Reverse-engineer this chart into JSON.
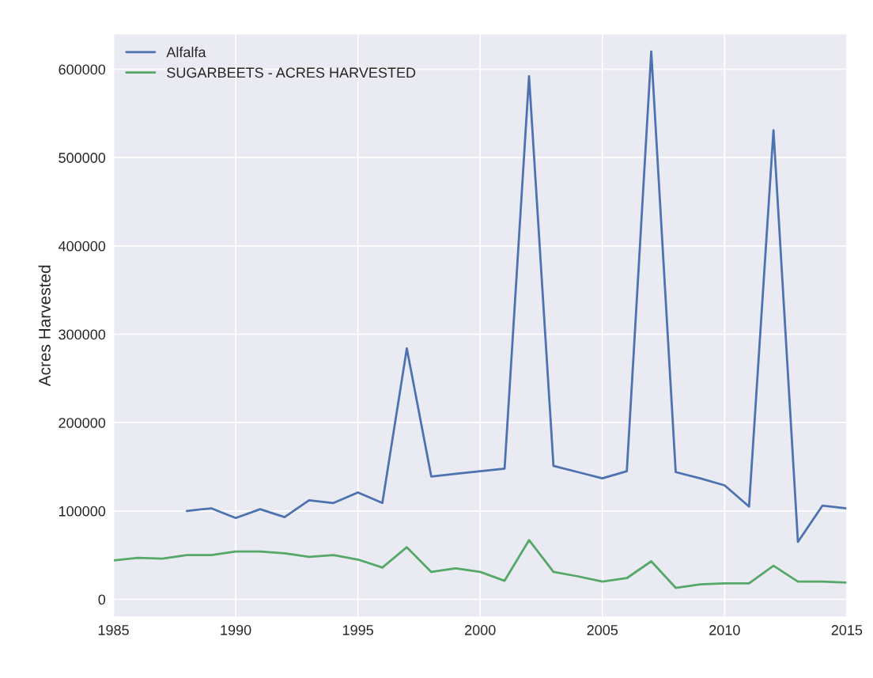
{
  "chart_data": {
    "type": "line",
    "ylabel": "Acres Harvested",
    "xlim": [
      1985,
      2015
    ],
    "xticks": [
      1985,
      1990,
      1995,
      2000,
      2005,
      2010,
      2015
    ],
    "ylim": [
      -20000,
      640000
    ],
    "yticks": [
      0,
      100000,
      200000,
      300000,
      400000,
      500000,
      600000
    ],
    "grid": true,
    "legend": "top left",
    "series": [
      {
        "name": "Alfalfa",
        "color": "#4c72b0",
        "x": [
          1988,
          1989,
          1990,
          1991,
          1992,
          1993,
          1994,
          1995,
          1996,
          1997,
          1998,
          1999,
          2000,
          2001,
          2002,
          2003,
          2004,
          2005,
          2006,
          2007,
          2008,
          2009,
          2010,
          2011,
          2012,
          2013,
          2014,
          2015
        ],
        "values": [
          100000,
          103000,
          92000,
          102000,
          93000,
          112000,
          109000,
          121000,
          109000,
          284000,
          139000,
          142000,
          145000,
          148000,
          592000,
          151000,
          144000,
          137000,
          145000,
          620000,
          144000,
          137000,
          129000,
          105000,
          531000,
          65000,
          106000,
          103000
        ]
      },
      {
        "name": "SUGARBEETS - ACRES HARVESTED",
        "color": "#55a868",
        "x": [
          1985,
          1986,
          1987,
          1988,
          1989,
          1990,
          1991,
          1992,
          1993,
          1994,
          1995,
          1996,
          1997,
          1998,
          1999,
          2000,
          2001,
          2002,
          2003,
          2004,
          2005,
          2006,
          2007,
          2008,
          2009,
          2010,
          2011,
          2012,
          2013,
          2014,
          2015
        ],
        "values": [
          44000,
          47000,
          46000,
          50000,
          50000,
          54000,
          54000,
          52000,
          48000,
          50000,
          45000,
          36000,
          59000,
          31000,
          35000,
          31000,
          21000,
          67000,
          31000,
          26000,
          20000,
          24000,
          43000,
          13000,
          17000,
          18000,
          18000,
          38000,
          20000,
          20000,
          19000
        ]
      }
    ]
  }
}
